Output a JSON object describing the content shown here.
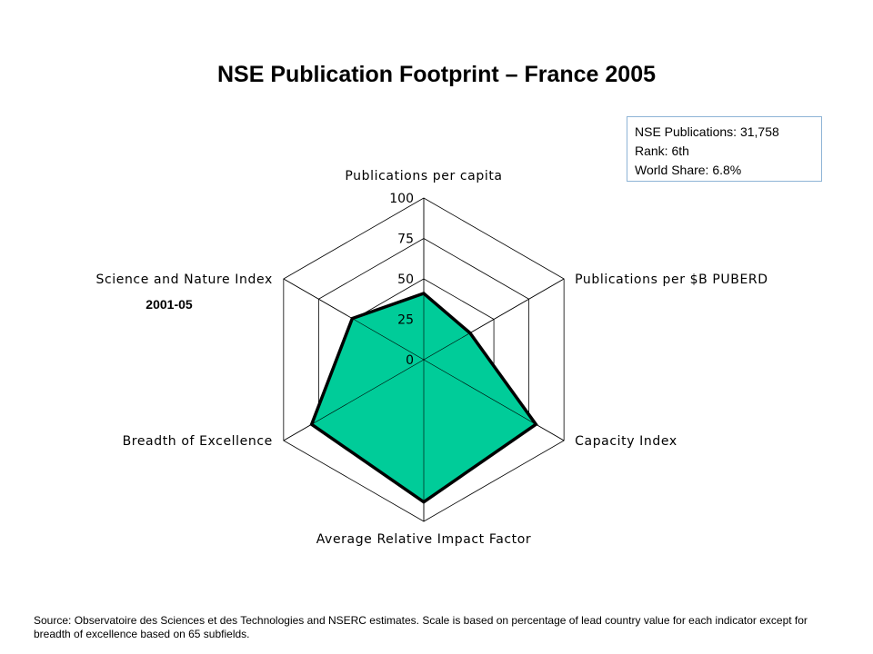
{
  "info_box": {
    "line1": "NSE Publications: 31,758",
    "line2": "Rank: 6th",
    "line3": "World Share: 6.8%"
  },
  "source_note": "Source: Observatoire des Sciences et des Technologies and NSERC estimates. Scale is based on percentage of lead country value for each indicator except for breadth of excellence based on 65 subfields.",
  "colors": {
    "fill": "#00cc99",
    "outline": "#000000",
    "grid": "#000000"
  },
  "chart_data": {
    "type": "radar",
    "title": "NSE Publication Footprint – France 2005",
    "axes": [
      "Publications per capita",
      "Publications per $B PUBERD",
      "Capacity Index",
      "Average Relative Impact Factor",
      "Breadth of Excellence",
      "Science and Nature Index"
    ],
    "axis_sublabels": [
      "",
      "",
      "",
      "",
      "",
      "2001-05"
    ],
    "ticks": [
      0,
      25,
      50,
      75,
      100
    ],
    "range": [
      0,
      100
    ],
    "series": [
      {
        "values": [
          41,
          33,
          80,
          88,
          80,
          51
        ]
      }
    ]
  }
}
